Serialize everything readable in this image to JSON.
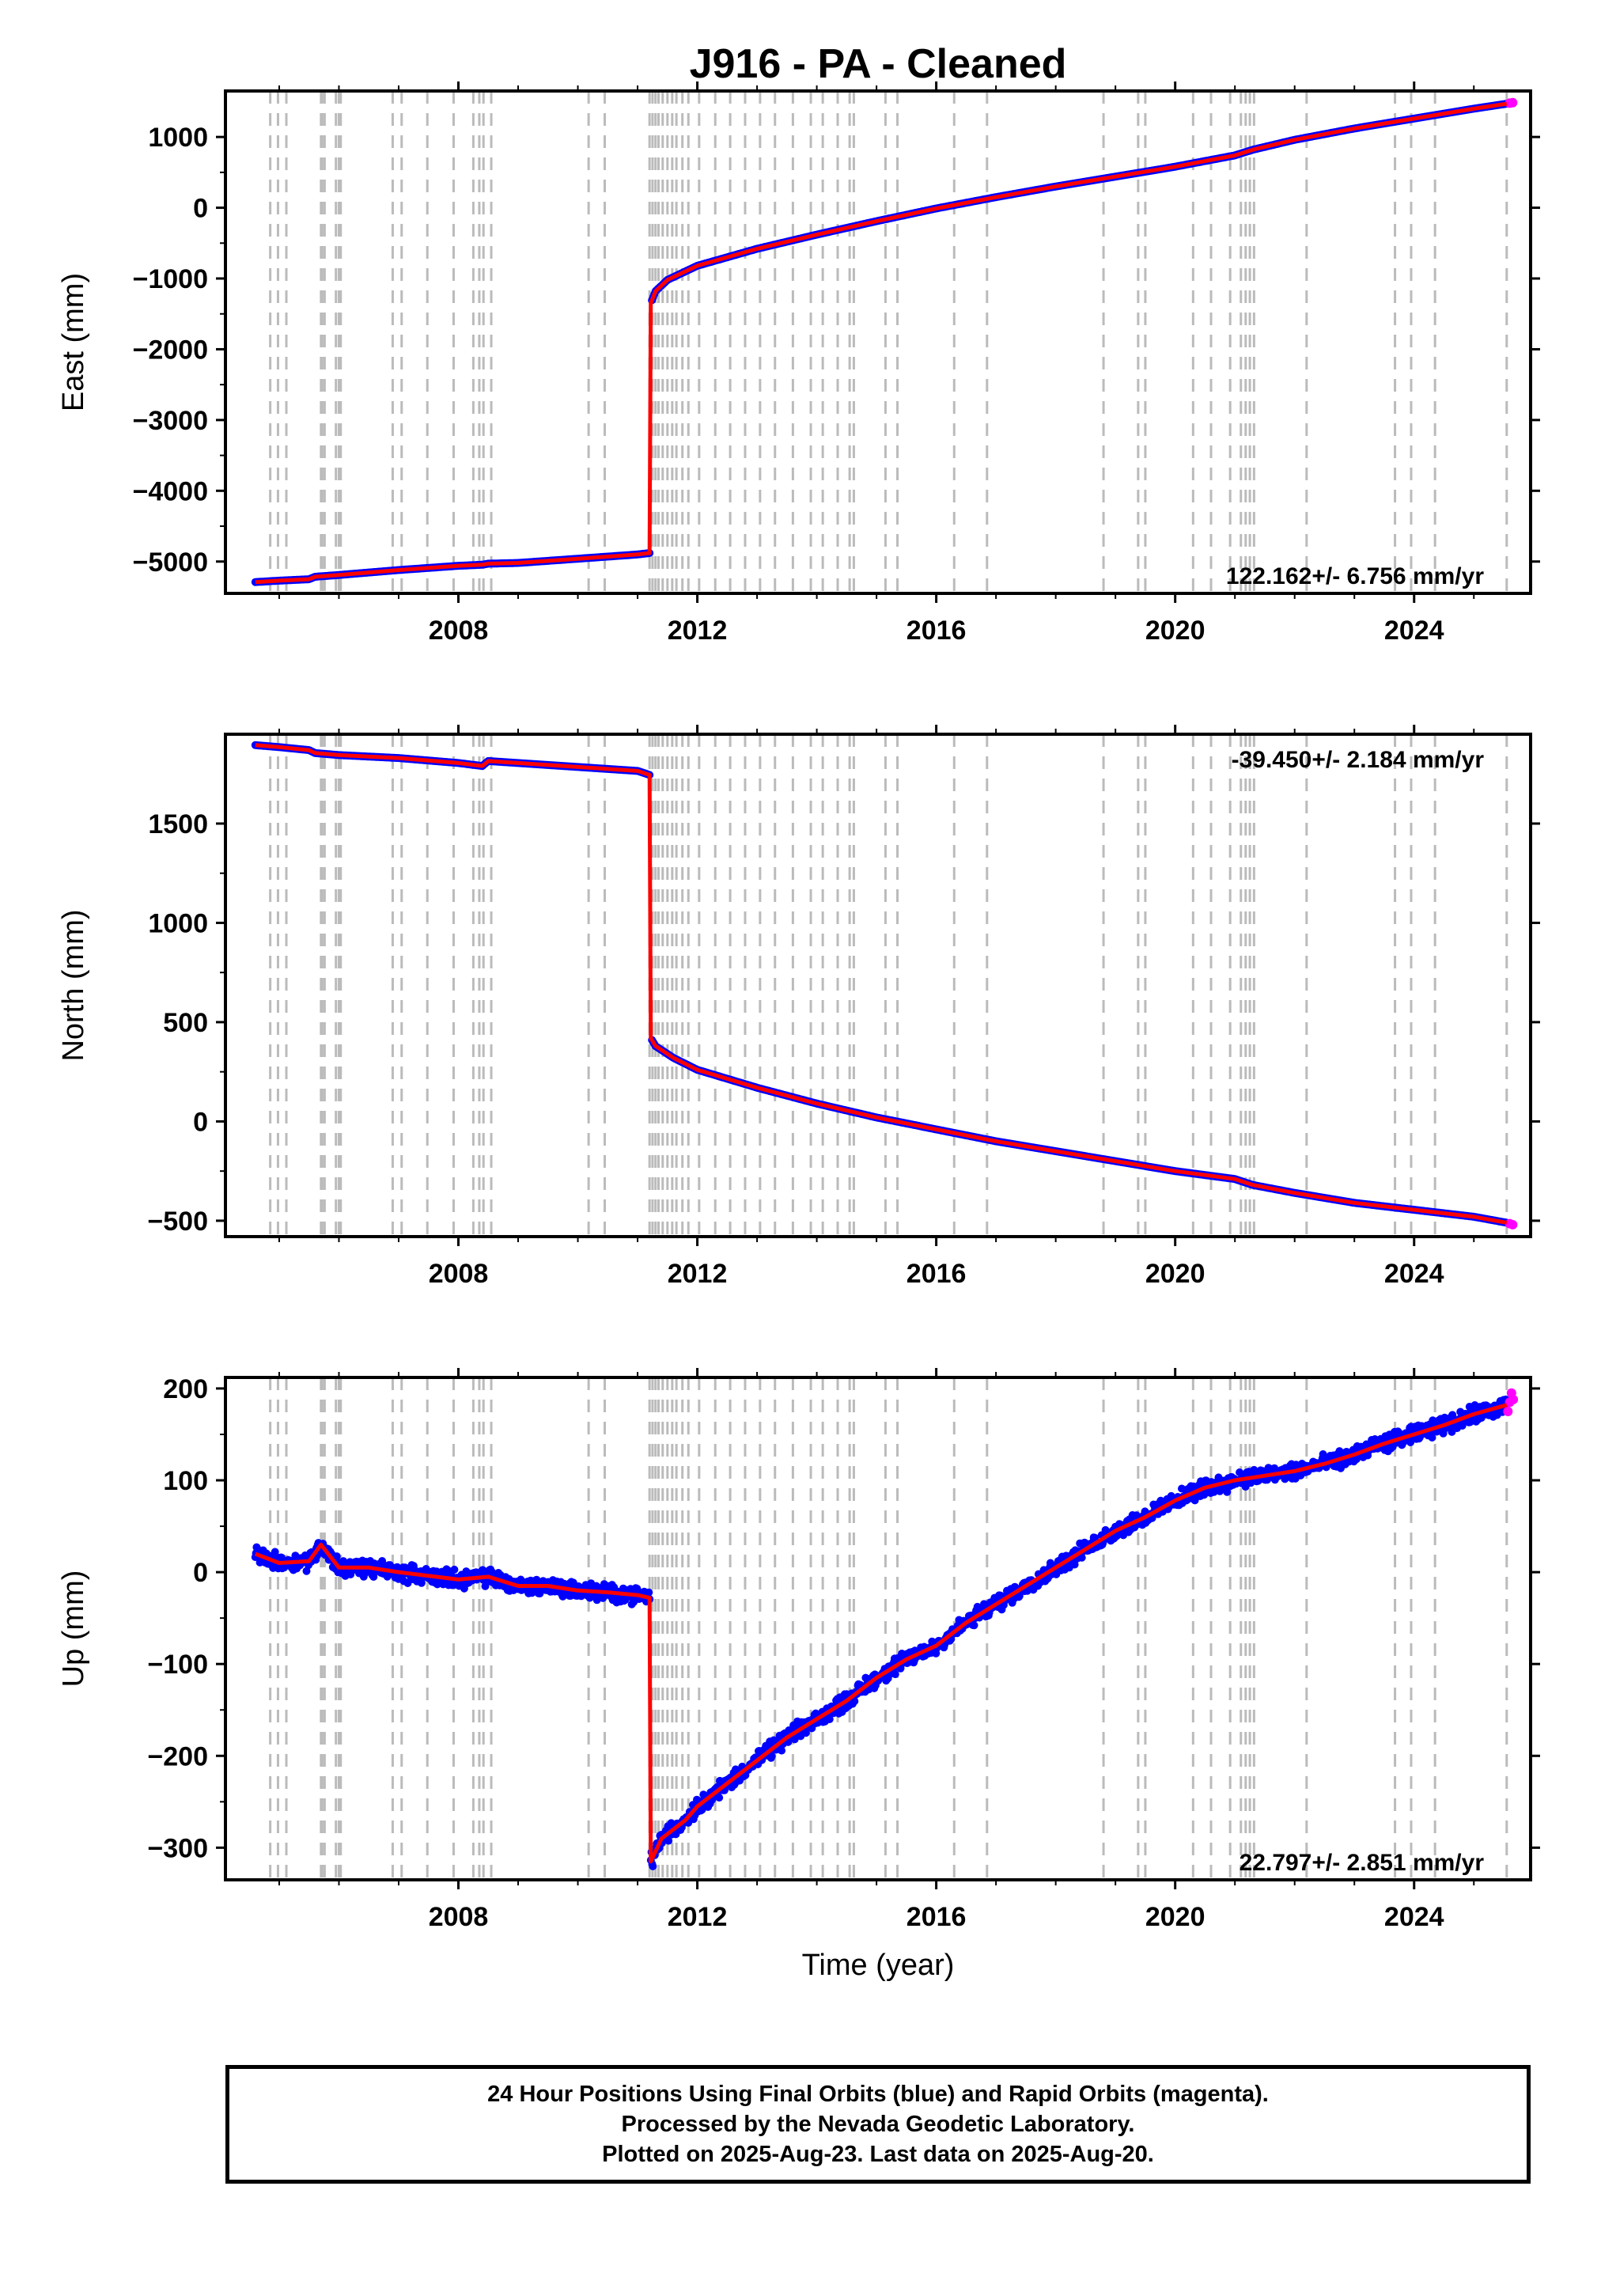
{
  "title": "J916  - PA - Cleaned",
  "footer": {
    "line1": "24 Hour Positions Using Final Orbits (blue) and Rapid Orbits (magenta).",
    "line2": "Processed by the Nevada Geodetic Laboratory.",
    "line3": "Plotted on 2025-Aug-23. Last data on 2025-Aug-20."
  },
  "colors": {
    "final_orbits": "#0000ff",
    "rapid_orbits": "#ff00ff",
    "model": "#ff0000",
    "event_lines": "#bbbbbb"
  },
  "chart_data": [
    {
      "type": "scatter",
      "panel": "east",
      "title": "J916  - PA - Cleaned",
      "ylabel": "East (mm)",
      "xlabel": "",
      "xlim": [
        2004.1,
        2025.95
      ],
      "ylim": [
        -5450,
        1650
      ],
      "xticks": [
        "2008",
        "2012",
        "2016",
        "2020",
        "2024"
      ],
      "yticks": [
        "1000",
        "0",
        "−1000",
        "−2000",
        "−3000",
        "−4000",
        "−5000"
      ],
      "ytick_values": [
        1000,
        0,
        -1000,
        -2000,
        -3000,
        -4000,
        -5000
      ],
      "rate_label": "122.162+/- 6.756 mm/yr",
      "rate_position": "bottom-right",
      "series_final": {
        "x": [
          2004.6,
          2005.0,
          2005.5,
          2005.6,
          2006.0,
          2007.0,
          2008.0,
          2008.4,
          2008.5,
          2009.0,
          2010.0,
          2011.0,
          2011.2,
          2011.22,
          2011.3,
          2011.5,
          2012.0,
          2013.0,
          2014.0,
          2015.0,
          2016.0,
          2017.0,
          2018.0,
          2019.0,
          2020.0,
          2021.0,
          2021.3,
          2022.0,
          2023.0,
          2024.0,
          2025.0,
          2025.55
        ],
        "y": [
          -5290,
          -5270,
          -5250,
          -5215,
          -5190,
          -5120,
          -5060,
          -5045,
          -5030,
          -5020,
          -4960,
          -4900,
          -4880,
          -1350,
          -1180,
          -1020,
          -820,
          -580,
          -380,
          -190,
          -10,
          150,
          300,
          440,
          580,
          740,
          820,
          960,
          1120,
          1260,
          1400,
          1470
        ]
      },
      "series_rapid": {
        "x": [
          2025.6,
          2025.65
        ],
        "y": [
          1478,
          1485
        ]
      }
    },
    {
      "type": "scatter",
      "panel": "north",
      "ylabel": "North (mm)",
      "xlabel": "",
      "xlim": [
        2004.1,
        2025.95
      ],
      "ylim": [
        -580,
        1950
      ],
      "xticks": [
        "2008",
        "2012",
        "2016",
        "2020",
        "2024"
      ],
      "yticks": [
        "1500",
        "1000",
        "500",
        "0",
        "−500"
      ],
      "ytick_values": [
        1500,
        1000,
        500,
        0,
        -500
      ],
      "rate_label": "-39.450+/- 2.184 mm/yr",
      "rate_position": "top-right",
      "series_final": {
        "x": [
          2004.6,
          2005.0,
          2005.5,
          2005.6,
          2006.0,
          2007.0,
          2008.0,
          2008.4,
          2008.5,
          2009.0,
          2010.0,
          2011.0,
          2011.2,
          2011.22,
          2011.3,
          2011.6,
          2012.0,
          2013.0,
          2014.0,
          2015.0,
          2016.0,
          2017.0,
          2018.0,
          2019.0,
          2020.0,
          2021.0,
          2021.3,
          2022.0,
          2023.0,
          2024.0,
          2025.0,
          2025.55
        ],
        "y": [
          1895,
          1885,
          1870,
          1855,
          1845,
          1830,
          1805,
          1790,
          1815,
          1805,
          1785,
          1765,
          1745,
          420,
          380,
          320,
          260,
          170,
          90,
          20,
          -40,
          -100,
          -150,
          -200,
          -250,
          -290,
          -320,
          -360,
          -410,
          -445,
          -480,
          -510
        ]
      },
      "series_rapid": {
        "x": [
          2025.6,
          2025.65
        ],
        "y": [
          -515,
          -520
        ]
      }
    },
    {
      "type": "scatter",
      "panel": "up",
      "ylabel": "Up (mm)",
      "xlabel": "Time (year)",
      "xlim": [
        2004.1,
        2025.95
      ],
      "ylim": [
        -335,
        212
      ],
      "xticks": [
        "2008",
        "2012",
        "2016",
        "2020",
        "2024"
      ],
      "yticks": [
        "200",
        "100",
        "0",
        "−100",
        "−200",
        "−300"
      ],
      "ytick_values": [
        200,
        100,
        0,
        -100,
        -200,
        -300
      ],
      "rate_label": "22.797+/- 2.851 mm/yr",
      "rate_position": "bottom-right",
      "series_final": {
        "x": [
          2004.6,
          2005.0,
          2005.5,
          2005.7,
          2006.0,
          2006.5,
          2007.0,
          2008.0,
          2008.5,
          2009.0,
          2009.5,
          2010.0,
          2010.5,
          2011.0,
          2011.2,
          2011.22,
          2011.4,
          2011.8,
          2012.0,
          2012.5,
          2013.0,
          2013.5,
          2014.0,
          2014.5,
          2015.0,
          2015.5,
          2016.0,
          2016.5,
          2017.0,
          2017.5,
          2018.0,
          2018.5,
          2019.0,
          2019.5,
          2020.0,
          2020.5,
          2021.0,
          2021.5,
          2022.0,
          2022.5,
          2023.0,
          2023.5,
          2024.0,
          2024.5,
          2025.0,
          2025.55
        ],
        "y": [
          20,
          10,
          12,
          30,
          5,
          5,
          0,
          -8,
          -5,
          -15,
          -15,
          -20,
          -22,
          -25,
          -28,
          -315,
          -290,
          -270,
          -255,
          -230,
          -205,
          -180,
          -160,
          -140,
          -115,
          -95,
          -80,
          -55,
          -35,
          -15,
          5,
          25,
          45,
          60,
          78,
          92,
          100,
          105,
          110,
          118,
          128,
          140,
          150,
          160,
          172,
          182
        ]
      },
      "series_rapid": {
        "x": [
          2025.57,
          2025.6,
          2025.63,
          2025.66
        ],
        "y": [
          175,
          185,
          195,
          188
        ]
      }
    }
  ],
  "event_years": [
    2004.85,
    2004.98,
    2005.12,
    2005.7,
    2005.72,
    2005.76,
    2005.95,
    2006.0,
    2006.03,
    2006.9,
    2007.05,
    2007.48,
    2007.92,
    2008.25,
    2008.35,
    2008.42,
    2008.55,
    2010.18,
    2010.45,
    2011.2,
    2011.25,
    2011.3,
    2011.35,
    2011.42,
    2011.5,
    2011.58,
    2011.65,
    2011.75,
    2011.85,
    2012.03,
    2012.3,
    2012.55,
    2012.8,
    2013.05,
    2013.3,
    2013.6,
    2013.9,
    2014.1,
    2014.35,
    2014.55,
    2014.62,
    2015.15,
    2015.35,
    2016.3,
    2016.85,
    2018.8,
    2019.38,
    2019.5,
    2020.3,
    2020.6,
    2020.92,
    2021.1,
    2021.18,
    2021.25,
    2021.32,
    2022.2,
    2023.68,
    2023.95,
    2024.35,
    2025.55
  ]
}
